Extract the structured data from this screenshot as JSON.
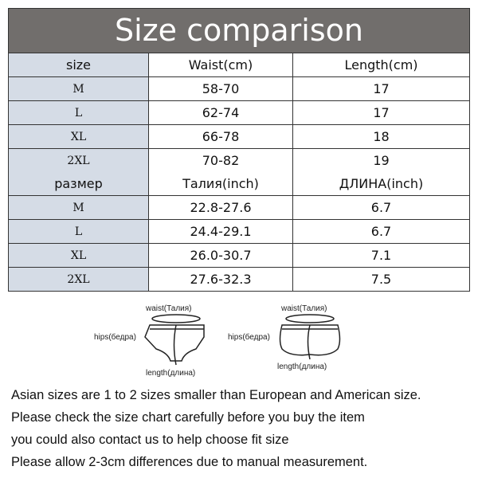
{
  "title": "Size comparison",
  "header_cm": [
    "size",
    "Waist(cm)",
    "Length(cm)"
  ],
  "rows_cm": [
    [
      "M",
      "58-70",
      "17"
    ],
    [
      "L",
      "62-74",
      "17"
    ],
    [
      "XL",
      "66-78",
      "18"
    ],
    [
      "2XL",
      "70-82",
      "19"
    ]
  ],
  "header_inch": [
    "размер",
    "Талия(inch)",
    "ДЛИНА(inch)"
  ],
  "rows_inch": [
    [
      "M",
      "22.8-27.6",
      "6.7"
    ],
    [
      "L",
      "24.4-29.1",
      "6.7"
    ],
    [
      "XL",
      "26.0-30.7",
      "7.1"
    ],
    [
      "2XL",
      "27.6-32.3",
      "7.5"
    ]
  ],
  "diagram": {
    "waist": "waist(Талия)",
    "hips": "hips(бедра)",
    "length": "length(длина)"
  },
  "notes": [
    "Asian sizes are 1 to 2 sizes smaller than European and American size.",
    "Please check the size chart carefully before you buy the item",
    "you could also contact us to help choose fit size",
    "Please allow 2-3cm differences due to manual measurement."
  ]
}
